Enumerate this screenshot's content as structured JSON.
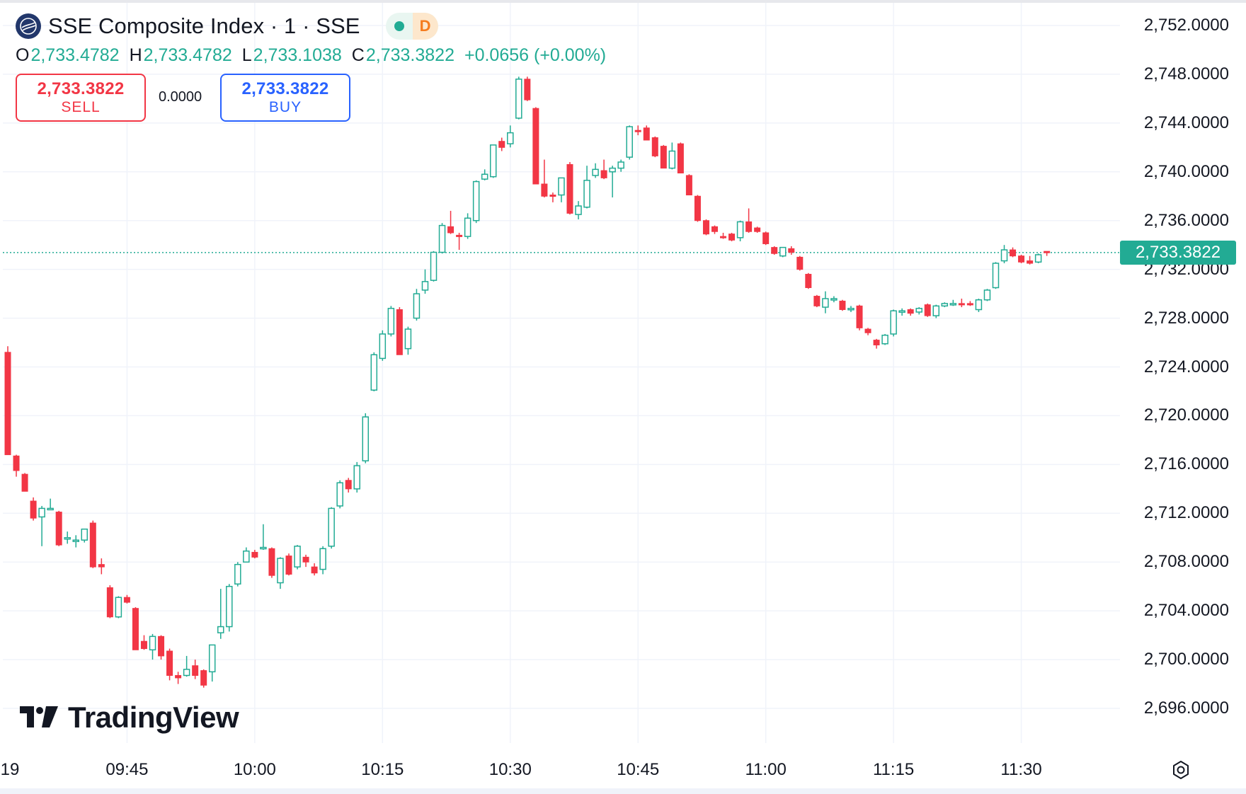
{
  "header": {
    "symbol_title": "SSE Composite Index · 1 · SSE",
    "market_badge": "D",
    "logo_icon": "sse-globe-icon",
    "status_icon": "market-open-dot"
  },
  "ohlc": {
    "o_key": "O",
    "o": "2,733.4782",
    "h_key": "H",
    "h": "2,733.4782",
    "l_key": "L",
    "l": "2,733.1038",
    "c_key": "C",
    "c": "2,733.3822",
    "change": "+0.0656 (+0.00%)"
  },
  "trade": {
    "sell_price": "2,733.3822",
    "sell_label": "SELL",
    "spread": "0.0000",
    "buy_price": "2,733.3822",
    "buy_label": "BUY"
  },
  "brand": {
    "name": "TradingView"
  },
  "colors": {
    "up": "#22ab94",
    "down": "#f23645",
    "buy": "#2962ff",
    "grid": "#f0f3fa",
    "last_price_line": "#22ab94"
  },
  "chart_data": {
    "type": "candlestick",
    "interval_minutes": 1,
    "start_time": "09:31",
    "ylim": [
      2693.5,
      2754
    ],
    "y_ticks": [
      2752,
      2748,
      2744,
      2740,
      2736,
      2732,
      2728,
      2724,
      2720,
      2716,
      2712,
      2708,
      2704,
      2700,
      2696
    ],
    "y_tick_labels": [
      "2,752.0000",
      "2,748.0000",
      "2,744.0000",
      "2,740.0000",
      "2,736.0000",
      "2,732.0000",
      "2,728.0000",
      "2,724.0000",
      "2,720.0000",
      "2,716.0000",
      "2,712.0000",
      "2,708.0000",
      "2,704.0000",
      "2,700.0000",
      "2,696.0000"
    ],
    "x_tick_labels": [
      "19",
      "09:45",
      "10:00",
      "10:15",
      "10:30",
      "10:45",
      "11:00",
      "11:15",
      "11:30"
    ],
    "last_price": 2733.3822,
    "last_price_label": "2,733.3822",
    "grid": true,
    "candles": [
      {
        "o": 2725.2,
        "h": 2725.7,
        "l": 2716.8,
        "c": 2716.8
      },
      {
        "o": 2716.7,
        "h": 2716.8,
        "l": 2715.0,
        "c": 2715.5
      },
      {
        "o": 2715.2,
        "h": 2715.3,
        "l": 2713.8,
        "c": 2713.8
      },
      {
        "o": 2713.0,
        "h": 2713.3,
        "l": 2711.4,
        "c": 2711.6
      },
      {
        "o": 2711.7,
        "h": 2712.6,
        "l": 2709.3,
        "c": 2712.4
      },
      {
        "o": 2712.4,
        "h": 2713.2,
        "l": 2712.3,
        "c": 2712.4
      },
      {
        "o": 2712.1,
        "h": 2712.2,
        "l": 2709.3,
        "c": 2709.4
      },
      {
        "o": 2709.9,
        "h": 2710.5,
        "l": 2709.5,
        "c": 2710.0
      },
      {
        "o": 2709.8,
        "h": 2710.2,
        "l": 2709.2,
        "c": 2709.8
      },
      {
        "o": 2709.8,
        "h": 2710.7,
        "l": 2709.6,
        "c": 2710.7
      },
      {
        "o": 2711.2,
        "h": 2711.4,
        "l": 2707.5,
        "c": 2707.6
      },
      {
        "o": 2707.8,
        "h": 2708.3,
        "l": 2707.0,
        "c": 2707.6
      },
      {
        "o": 2705.9,
        "h": 2706.1,
        "l": 2703.4,
        "c": 2703.5
      },
      {
        "o": 2703.5,
        "h": 2705.2,
        "l": 2703.4,
        "c": 2705.1
      },
      {
        "o": 2705.1,
        "h": 2705.3,
        "l": 2704.6,
        "c": 2704.7
      },
      {
        "o": 2704.2,
        "h": 2704.3,
        "l": 2700.8,
        "c": 2700.8
      },
      {
        "o": 2701.5,
        "h": 2702.0,
        "l": 2700.8,
        "c": 2700.9
      },
      {
        "o": 2700.8,
        "h": 2702.1,
        "l": 2700.0,
        "c": 2701.9
      },
      {
        "o": 2701.9,
        "h": 2702.0,
        "l": 2700.0,
        "c": 2700.3
      },
      {
        "o": 2700.7,
        "h": 2700.9,
        "l": 2698.3,
        "c": 2698.7
      },
      {
        "o": 2698.7,
        "h": 2699.0,
        "l": 2698.0,
        "c": 2698.5
      },
      {
        "o": 2698.7,
        "h": 2700.3,
        "l": 2698.6,
        "c": 2699.2
      },
      {
        "o": 2699.5,
        "h": 2700.0,
        "l": 2698.4,
        "c": 2698.7
      },
      {
        "o": 2699.1,
        "h": 2699.2,
        "l": 2697.7,
        "c": 2697.9
      },
      {
        "o": 2699.0,
        "h": 2701.2,
        "l": 2698.2,
        "c": 2701.2
      },
      {
        "o": 2702.2,
        "h": 2705.8,
        "l": 2701.7,
        "c": 2702.7
      },
      {
        "o": 2702.7,
        "h": 2706.2,
        "l": 2702.3,
        "c": 2706.0
      },
      {
        "o": 2706.2,
        "h": 2708.0,
        "l": 2706.0,
        "c": 2707.8
      },
      {
        "o": 2708.0,
        "h": 2709.2,
        "l": 2708.0,
        "c": 2708.9
      },
      {
        "o": 2708.8,
        "h": 2709.0,
        "l": 2708.3,
        "c": 2708.4
      },
      {
        "o": 2709.2,
        "h": 2711.1,
        "l": 2709.0,
        "c": 2709.2
      },
      {
        "o": 2709.1,
        "h": 2709.2,
        "l": 2706.7,
        "c": 2706.9
      },
      {
        "o": 2706.3,
        "h": 2708.4,
        "l": 2705.8,
        "c": 2708.3
      },
      {
        "o": 2708.5,
        "h": 2708.7,
        "l": 2706.9,
        "c": 2707.0
      },
      {
        "o": 2707.6,
        "h": 2709.4,
        "l": 2707.4,
        "c": 2709.3
      },
      {
        "o": 2708.4,
        "h": 2708.6,
        "l": 2707.6,
        "c": 2708.0
      },
      {
        "o": 2707.6,
        "h": 2707.9,
        "l": 2706.9,
        "c": 2707.1
      },
      {
        "o": 2707.4,
        "h": 2709.3,
        "l": 2707.0,
        "c": 2709.1
      },
      {
        "o": 2709.3,
        "h": 2712.5,
        "l": 2709.1,
        "c": 2712.4
      },
      {
        "o": 2712.6,
        "h": 2714.7,
        "l": 2712.4,
        "c": 2714.5
      },
      {
        "o": 2714.7,
        "h": 2714.9,
        "l": 2713.7,
        "c": 2714.0
      },
      {
        "o": 2714.0,
        "h": 2716.2,
        "l": 2713.7,
        "c": 2715.9
      },
      {
        "o": 2716.3,
        "h": 2720.2,
        "l": 2716.1,
        "c": 2719.9
      },
      {
        "o": 2722.1,
        "h": 2725.2,
        "l": 2722.0,
        "c": 2725.0
      },
      {
        "o": 2724.7,
        "h": 2727.0,
        "l": 2724.5,
        "c": 2726.7
      },
      {
        "o": 2726.7,
        "h": 2729.0,
        "l": 2726.5,
        "c": 2728.8
      },
      {
        "o": 2728.7,
        "h": 2728.9,
        "l": 2725.0,
        "c": 2725.0
      },
      {
        "o": 2725.5,
        "h": 2727.3,
        "l": 2725.0,
        "c": 2727.1
      },
      {
        "o": 2728.0,
        "h": 2730.4,
        "l": 2727.8,
        "c": 2730.0
      },
      {
        "o": 2730.3,
        "h": 2732.0,
        "l": 2730.0,
        "c": 2731.0
      },
      {
        "o": 2731.1,
        "h": 2733.5,
        "l": 2731.0,
        "c": 2733.4
      },
      {
        "o": 2733.4,
        "h": 2735.8,
        "l": 2733.3,
        "c": 2735.6
      },
      {
        "o": 2735.5,
        "h": 2736.8,
        "l": 2734.9,
        "c": 2735.0
      },
      {
        "o": 2734.8,
        "h": 2735.0,
        "l": 2733.6,
        "c": 2734.7
      },
      {
        "o": 2734.7,
        "h": 2736.6,
        "l": 2734.5,
        "c": 2736.2
      },
      {
        "o": 2736.0,
        "h": 2739.3,
        "l": 2735.8,
        "c": 2739.2
      },
      {
        "o": 2739.4,
        "h": 2740.2,
        "l": 2739.3,
        "c": 2739.8
      },
      {
        "o": 2739.6,
        "h": 2742.2,
        "l": 2739.5,
        "c": 2742.2
      },
      {
        "o": 2742.5,
        "h": 2742.8,
        "l": 2741.7,
        "c": 2742.0
      },
      {
        "o": 2742.3,
        "h": 2743.8,
        "l": 2742.0,
        "c": 2743.2
      },
      {
        "o": 2744.4,
        "h": 2747.8,
        "l": 2744.3,
        "c": 2747.6
      },
      {
        "o": 2747.6,
        "h": 2747.8,
        "l": 2745.8,
        "c": 2745.9
      },
      {
        "o": 2745.2,
        "h": 2745.3,
        "l": 2739.0,
        "c": 2739.0
      },
      {
        "o": 2739.0,
        "h": 2741.0,
        "l": 2737.9,
        "c": 2738.0
      },
      {
        "o": 2738.1,
        "h": 2738.3,
        "l": 2737.5,
        "c": 2738.0
      },
      {
        "o": 2738.1,
        "h": 2739.5,
        "l": 2737.5,
        "c": 2739.5
      },
      {
        "o": 2740.6,
        "h": 2740.8,
        "l": 2736.5,
        "c": 2736.6
      },
      {
        "o": 2736.5,
        "h": 2737.6,
        "l": 2736.1,
        "c": 2737.2
      },
      {
        "o": 2737.1,
        "h": 2740.5,
        "l": 2737.0,
        "c": 2739.3
      },
      {
        "o": 2739.7,
        "h": 2740.7,
        "l": 2739.5,
        "c": 2740.2
      },
      {
        "o": 2740.1,
        "h": 2741.0,
        "l": 2739.4,
        "c": 2739.5
      },
      {
        "o": 2740.0,
        "h": 2740.5,
        "l": 2737.9,
        "c": 2740.3
      },
      {
        "o": 2740.3,
        "h": 2741.0,
        "l": 2740.0,
        "c": 2740.8
      },
      {
        "o": 2741.2,
        "h": 2743.8,
        "l": 2741.0,
        "c": 2743.7
      },
      {
        "o": 2743.4,
        "h": 2743.8,
        "l": 2743.0,
        "c": 2743.3
      },
      {
        "o": 2743.6,
        "h": 2743.8,
        "l": 2742.6,
        "c": 2742.6
      },
      {
        "o": 2742.8,
        "h": 2742.9,
        "l": 2741.2,
        "c": 2741.3
      },
      {
        "o": 2742.1,
        "h": 2742.2,
        "l": 2740.3,
        "c": 2740.3
      },
      {
        "o": 2740.3,
        "h": 2742.4,
        "l": 2740.2,
        "c": 2741.7
      },
      {
        "o": 2742.3,
        "h": 2742.4,
        "l": 2739.9,
        "c": 2739.9
      },
      {
        "o": 2739.7,
        "h": 2739.8,
        "l": 2738.1,
        "c": 2738.1
      },
      {
        "o": 2738.0,
        "h": 2738.1,
        "l": 2735.9,
        "c": 2736.0
      },
      {
        "o": 2736.0,
        "h": 2736.1,
        "l": 2734.8,
        "c": 2734.9
      },
      {
        "o": 2735.5,
        "h": 2735.6,
        "l": 2734.9,
        "c": 2735.1
      },
      {
        "o": 2734.7,
        "h": 2735.0,
        "l": 2734.5,
        "c": 2734.6
      },
      {
        "o": 2734.9,
        "h": 2735.0,
        "l": 2734.3,
        "c": 2734.4
      },
      {
        "o": 2734.6,
        "h": 2736.0,
        "l": 2734.3,
        "c": 2735.9
      },
      {
        "o": 2735.9,
        "h": 2737.0,
        "l": 2735.0,
        "c": 2735.1
      },
      {
        "o": 2735.4,
        "h": 2735.5,
        "l": 2735.0,
        "c": 2735.1
      },
      {
        "o": 2735.0,
        "h": 2735.1,
        "l": 2734.0,
        "c": 2734.1
      },
      {
        "o": 2733.8,
        "h": 2733.9,
        "l": 2733.2,
        "c": 2733.3
      },
      {
        "o": 2733.1,
        "h": 2733.8,
        "l": 2733.0,
        "c": 2733.8
      },
      {
        "o": 2733.7,
        "h": 2733.9,
        "l": 2733.2,
        "c": 2733.4
      },
      {
        "o": 2733.0,
        "h": 2733.1,
        "l": 2731.9,
        "c": 2732.0
      },
      {
        "o": 2731.6,
        "h": 2731.7,
        "l": 2730.4,
        "c": 2730.5
      },
      {
        "o": 2729.8,
        "h": 2729.9,
        "l": 2728.9,
        "c": 2729.0
      },
      {
        "o": 2728.9,
        "h": 2730.2,
        "l": 2728.4,
        "c": 2729.6
      },
      {
        "o": 2729.5,
        "h": 2729.8,
        "l": 2729.3,
        "c": 2729.6
      },
      {
        "o": 2729.4,
        "h": 2729.5,
        "l": 2728.6,
        "c": 2728.7
      },
      {
        "o": 2728.7,
        "h": 2729.0,
        "l": 2728.5,
        "c": 2728.8
      },
      {
        "o": 2729.0,
        "h": 2729.1,
        "l": 2727.0,
        "c": 2727.2
      },
      {
        "o": 2727.1,
        "h": 2727.2,
        "l": 2726.6,
        "c": 2726.8
      },
      {
        "o": 2726.2,
        "h": 2726.3,
        "l": 2725.5,
        "c": 2725.8
      },
      {
        "o": 2725.9,
        "h": 2726.7,
        "l": 2725.8,
        "c": 2726.6
      },
      {
        "o": 2726.7,
        "h": 2728.7,
        "l": 2726.5,
        "c": 2728.6
      },
      {
        "o": 2728.5,
        "h": 2728.8,
        "l": 2728.2,
        "c": 2728.6
      },
      {
        "o": 2728.7,
        "h": 2728.8,
        "l": 2728.2,
        "c": 2728.4
      },
      {
        "o": 2728.5,
        "h": 2728.9,
        "l": 2728.3,
        "c": 2728.8
      },
      {
        "o": 2729.1,
        "h": 2729.2,
        "l": 2728.1,
        "c": 2728.2
      },
      {
        "o": 2728.2,
        "h": 2729.1,
        "l": 2728.0,
        "c": 2729.0
      },
      {
        "o": 2729.0,
        "h": 2729.3,
        "l": 2728.9,
        "c": 2729.2
      },
      {
        "o": 2729.1,
        "h": 2729.5,
        "l": 2729.0,
        "c": 2729.2
      },
      {
        "o": 2729.2,
        "h": 2729.6,
        "l": 2728.9,
        "c": 2729.1
      },
      {
        "o": 2729.2,
        "h": 2729.4,
        "l": 2729.0,
        "c": 2729.1
      },
      {
        "o": 2728.7,
        "h": 2729.6,
        "l": 2728.5,
        "c": 2729.5
      },
      {
        "o": 2729.5,
        "h": 2730.4,
        "l": 2729.4,
        "c": 2730.3
      },
      {
        "o": 2730.5,
        "h": 2732.6,
        "l": 2730.4,
        "c": 2732.5
      },
      {
        "o": 2732.7,
        "h": 2734.0,
        "l": 2732.5,
        "c": 2733.6
      },
      {
        "o": 2733.6,
        "h": 2733.8,
        "l": 2733.0,
        "c": 2733.1
      },
      {
        "o": 2733.1,
        "h": 2733.2,
        "l": 2732.5,
        "c": 2732.6
      },
      {
        "o": 2732.7,
        "h": 2733.1,
        "l": 2732.4,
        "c": 2732.5
      },
      {
        "o": 2732.6,
        "h": 2733.3,
        "l": 2732.5,
        "c": 2733.2
      },
      {
        "o": 2733.4782,
        "h": 2733.4782,
        "l": 2733.1038,
        "c": 2733.3822
      }
    ]
  }
}
